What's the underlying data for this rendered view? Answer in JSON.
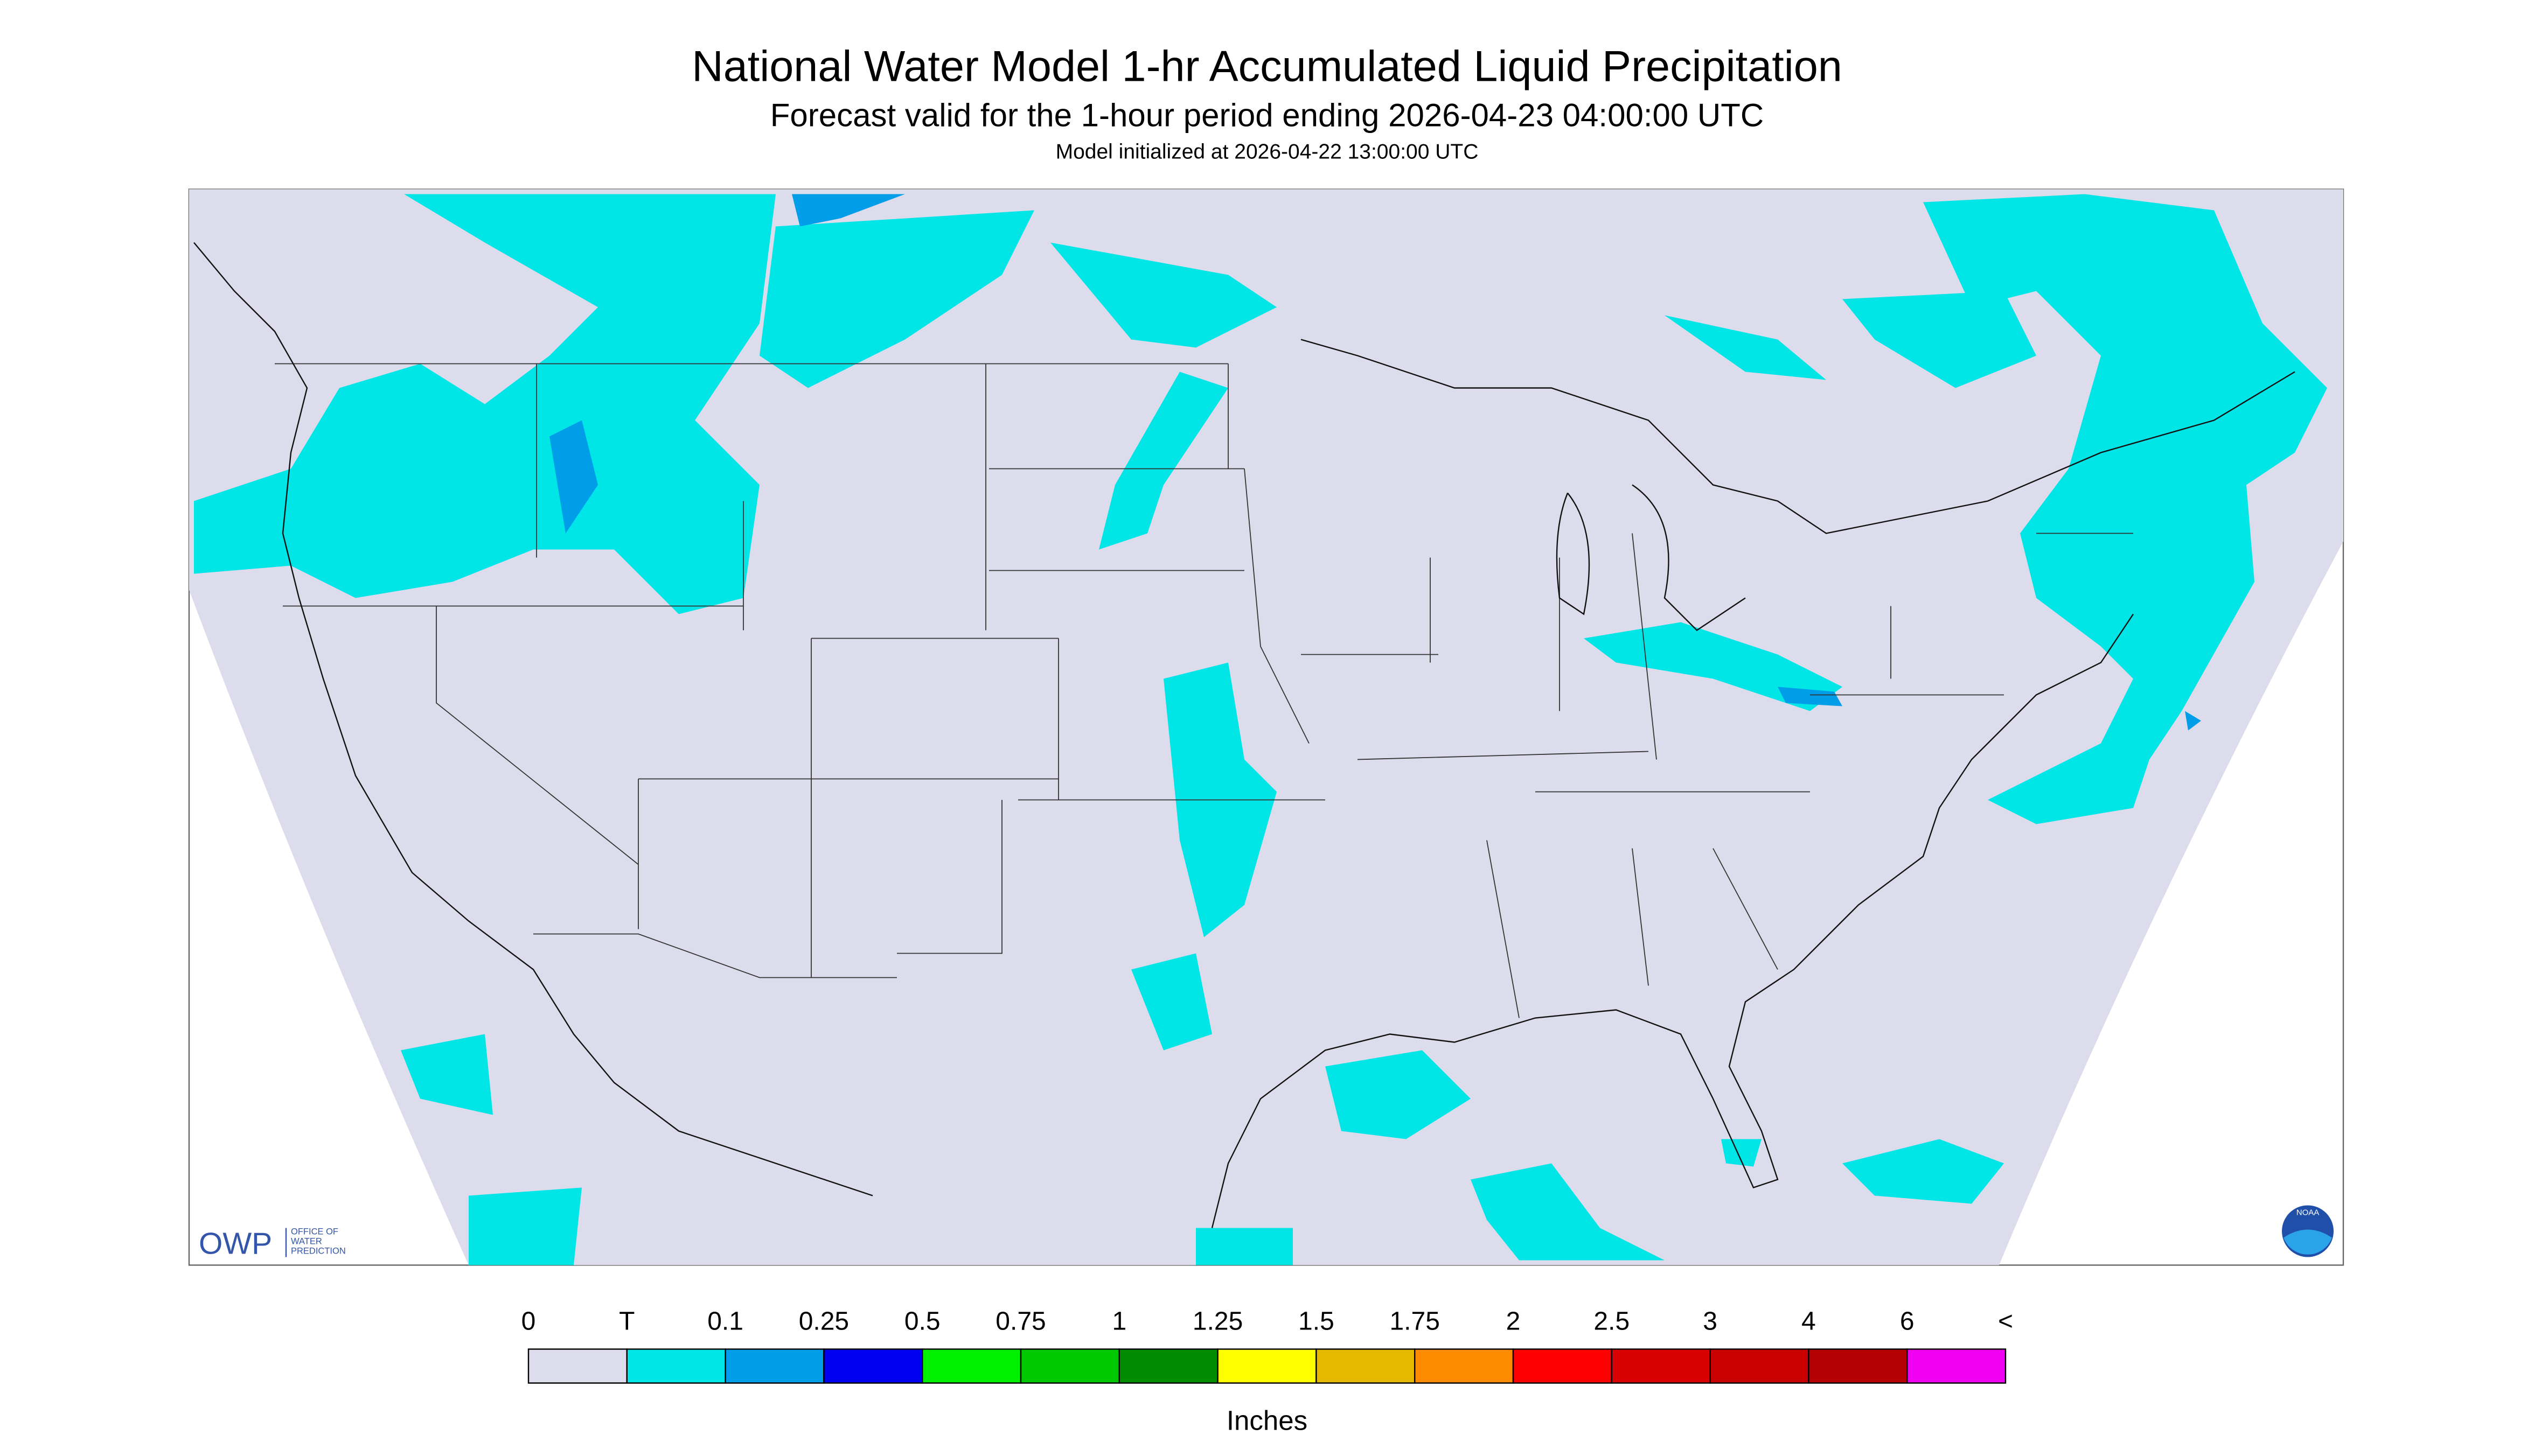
{
  "header": {
    "title": "National Water Model 1-hr Accumulated Liquid Precipitation",
    "subtitle": "Forecast valid for the 1-hour period ending 2026-04-23 04:00:00 UTC",
    "initialized": "Model initialized at 2026-04-22 13:00:00 UTC"
  },
  "logos": {
    "owp": "OWP",
    "owp_name": [
      "OFFICE OF",
      "WATER",
      "PREDICTION"
    ],
    "noaa": "NOAA"
  },
  "legend": {
    "labels": [
      "0",
      "T",
      "0.1",
      "0.25",
      "0.5",
      "0.75",
      "1",
      "1.25",
      "1.5",
      "1.75",
      "2",
      "2.5",
      "3",
      "4",
      "6",
      "<"
    ],
    "colors": [
      "#dcdcec",
      "#00e5e5",
      "#009ee8",
      "#0000f0",
      "#00f000",
      "#00c800",
      "#008c00",
      "#ffff00",
      "#e6b800",
      "#ff8c00",
      "#ff0000",
      "#d80000",
      "#c80000",
      "#b40000",
      "#f000f0",
      "#9955cc"
    ],
    "unit": "Inches"
  }
}
